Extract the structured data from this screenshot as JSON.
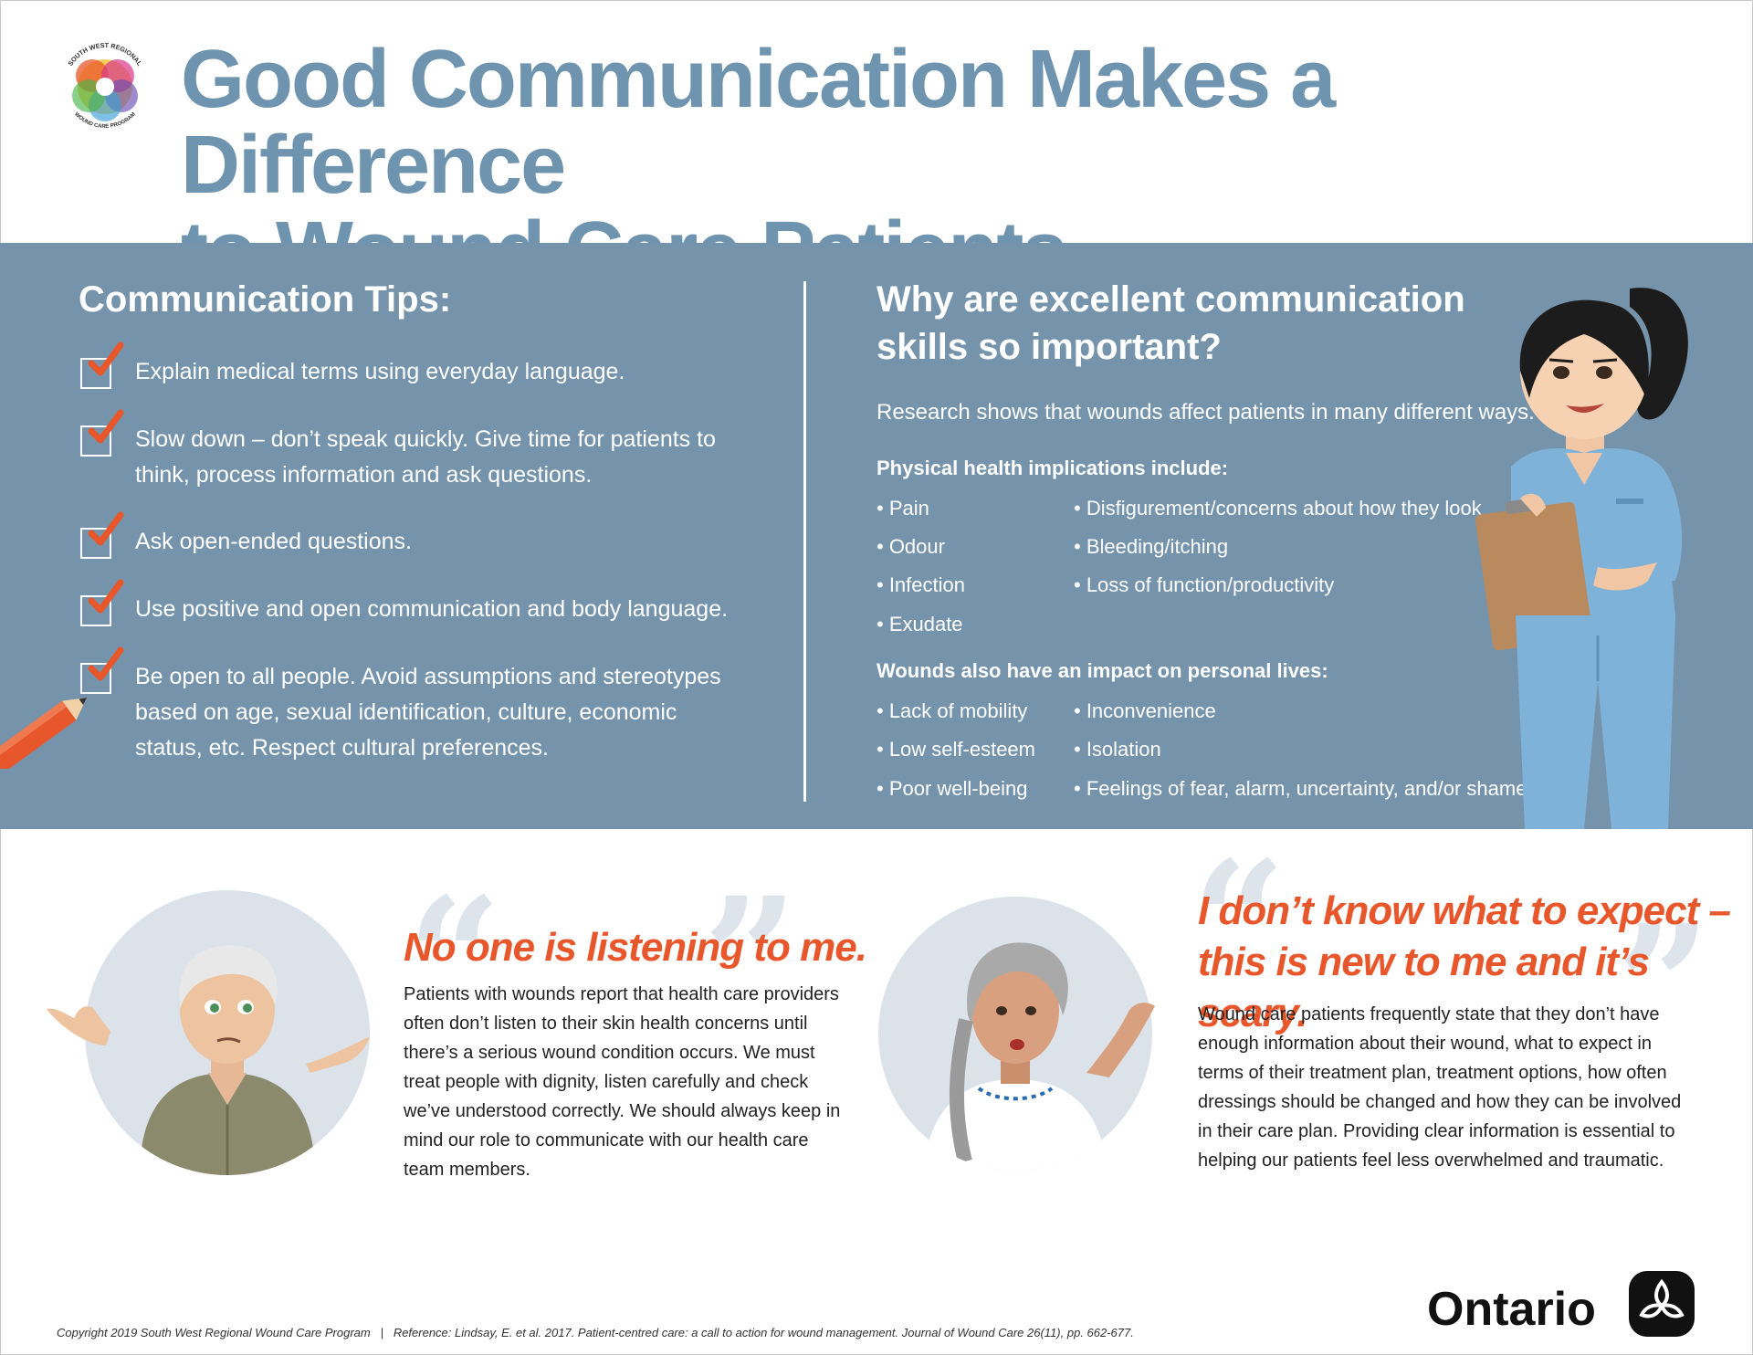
{
  "header": {
    "logo_top_text": "SOUTH WEST REGIONAL",
    "logo_bottom_text": "WOUND CARE PROGRAM",
    "title_line1": "Good Communication Makes a Difference",
    "title_line2": "to Wound Care Patients"
  },
  "tips": {
    "heading": "Communication Tips:",
    "items": [
      "Explain medical terms using everyday language.",
      "Slow down – don’t speak quickly. Give time for patients to think, process information and ask questions.",
      "Ask open-ended questions.",
      " Use positive and open communication and body language.",
      "Be open to all people. Avoid assumptions and stereotypes based on age, sexual identification, culture, economic status, etc. Respect cultural preferences."
    ]
  },
  "why": {
    "heading": "Why are excellent communication skills so important?",
    "research": "Research shows that wounds affect patients in many different ways.",
    "physical_heading": "Physical health implications include:",
    "physical_col1": [
      "• Pain",
      "• Odour",
      "• Infection",
      "• Exudate"
    ],
    "physical_col2": [
      "• Disfigurement/concerns about how they look",
      "• Bleeding/itching",
      "• Loss of function/productivity"
    ],
    "personal_heading": "Wounds also have an impact on personal lives:",
    "personal_col1": [
      "• Lack of mobility",
      "• Low self-esteem",
      "• Poor well-being"
    ],
    "personal_col2": [
      "• Inconvenience",
      "• Isolation",
      "• Feelings of fear, alarm, uncertainty, and/or shame"
    ]
  },
  "quotes": {
    "left": {
      "quote": "No one is listening to me.",
      "text": "Patients with wounds report that health care providers often don’t listen to their skin health concerns until there’s a serious wound condition occurs. We must treat people with dignity, listen carefully and check we’ve understood correctly. We should always keep in mind our role to communicate with our health care team members."
    },
    "right": {
      "quote_line1": "I don’t know what to expect –",
      "quote_line2": "this is new to me and it’s scary.",
      "text": "Wound care patients frequently state that they don’t have enough information about their wound, what to expect in terms of their treatment plan, treatment options, how often dressings should be changed and how they can be involved in their care plan. Providing clear information is essential to helping our patients feel less overwhelmed and traumatic."
    }
  },
  "footer": {
    "copyright": "Copyright 2019 South West Regional Wound Care Program",
    "separator": "|",
    "reference": "Reference: Lindsay, E. et al. 2017. Patient-centred care: a call to action for wound management.  Journal of Wound Care 26(11), pp. 662-677.",
    "brand": "Ontario"
  },
  "colors": {
    "title_blue": "#6f94b0",
    "band_blue": "#7594ab",
    "accent_orange": "#e8572b",
    "circle_bg": "#dbe2ea"
  }
}
